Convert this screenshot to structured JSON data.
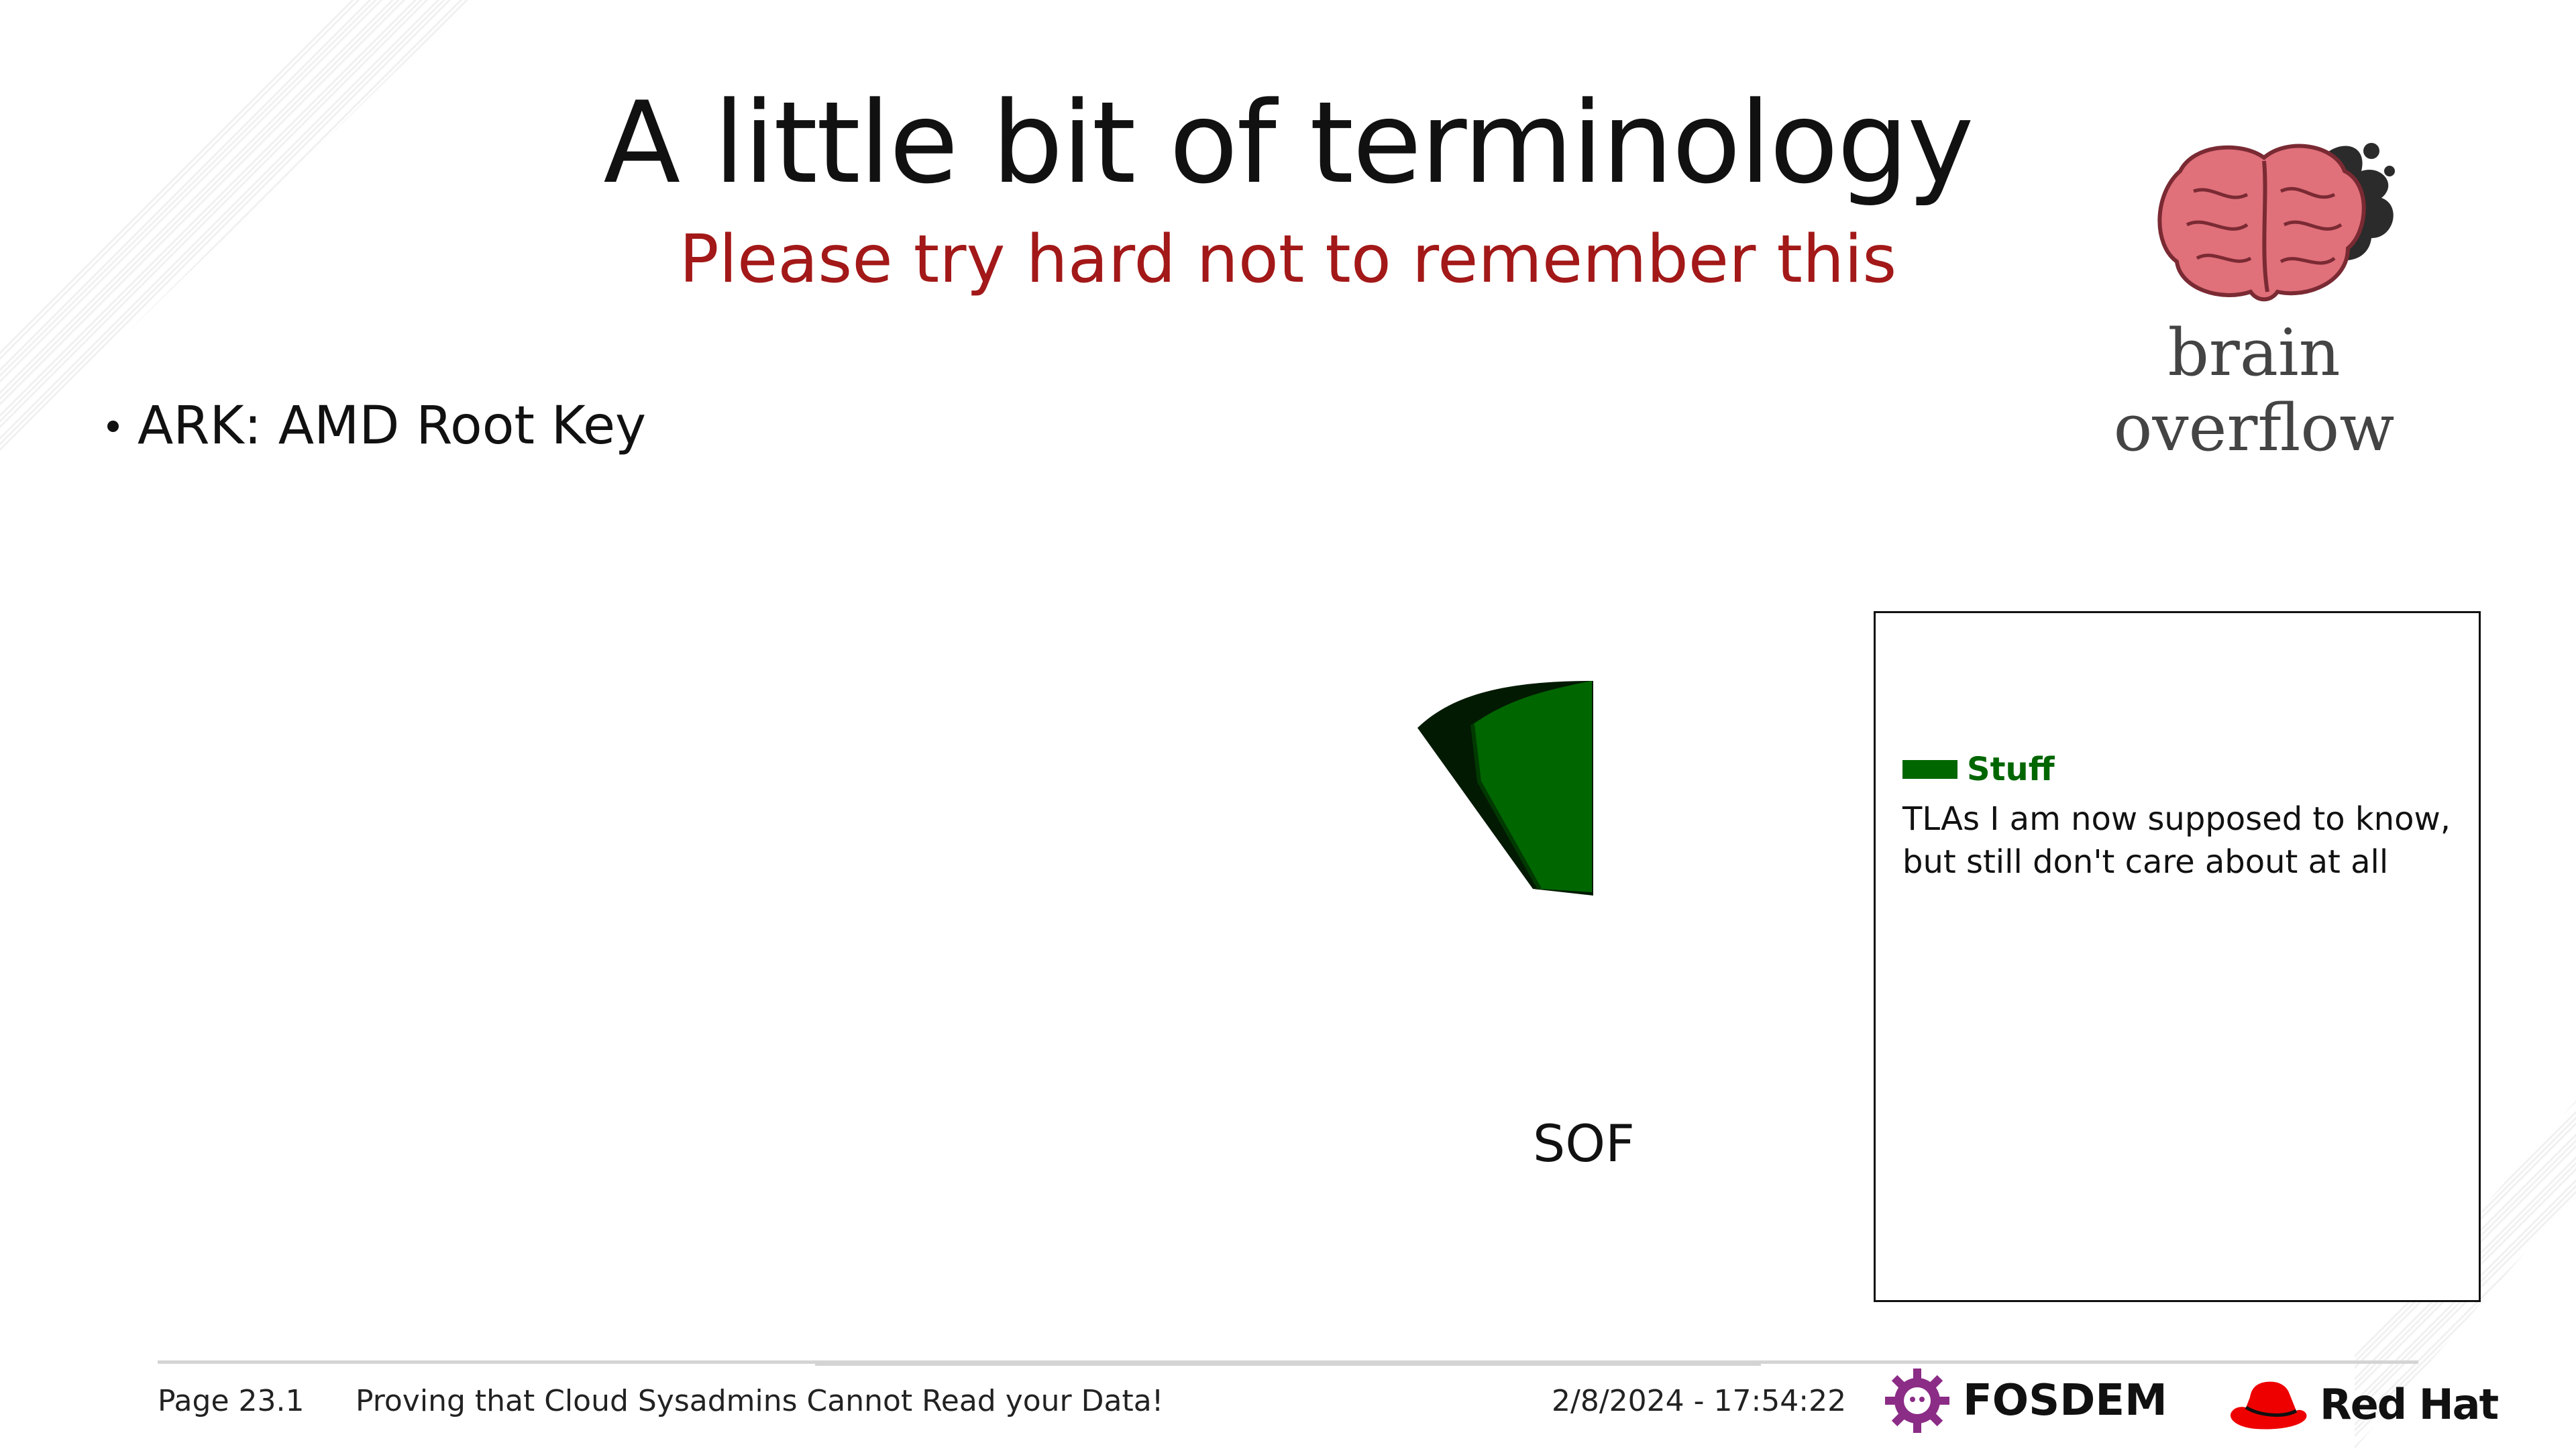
{
  "slide": {
    "title": "A little bit of terminology",
    "subtitle": "Please try hard not to remember this",
    "bullets": [
      "ARK: AMD Root Key"
    ]
  },
  "branding": {
    "logo_text": "brain overflow",
    "logo_icon": "brain-icon"
  },
  "diagram": {
    "segment_label": "SOF",
    "segment_color": "#006600",
    "legend": {
      "name": "Stuff",
      "description": "TLAs I am now supposed to know, but still don't care about at all",
      "color": "#006600"
    }
  },
  "footer": {
    "page": "Page 23.1",
    "talk_title": "Proving that Cloud Sysadmins Cannot Read your Data!",
    "datetime": "2/8/2024 - 17:54:22",
    "fosdem_label": "FOSDEM",
    "redhat_label": "Red Hat"
  },
  "colors": {
    "subtitle": "#a31818",
    "accent_green": "#006600",
    "fosdem_purple": "#8b2c86",
    "redhat_red": "#ee0000"
  }
}
